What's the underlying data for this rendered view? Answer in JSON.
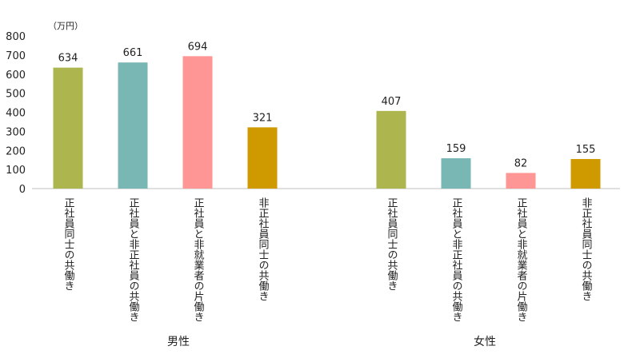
{
  "chart_data": {
    "type": "bar",
    "unit_label": "（万円）",
    "ylim": [
      0,
      800
    ],
    "yticks": [
      0,
      100,
      200,
      300,
      400,
      500,
      600,
      700,
      800
    ],
    "grid": false,
    "groups": [
      {
        "name": "男性",
        "bars": [
          {
            "category": "正社員同士の共働き",
            "value": 634,
            "color": "#adb54e"
          },
          {
            "category": "正社員と非正社員の共働き",
            "value": 661,
            "color": "#79b7b5"
          },
          {
            "category": "正社員と非就業者の片働き",
            "value": 694,
            "color": "#fe9696"
          },
          {
            "category": "非正社員同士の共働き",
            "value": 321,
            "color": "#cf9a00"
          }
        ]
      },
      {
        "name": "女性",
        "bars": [
          {
            "category": "正社員同士の共働き",
            "value": 407,
            "color": "#adb54e"
          },
          {
            "category": "正社員と非正社員の共働き",
            "value": 159,
            "color": "#79b7b5"
          },
          {
            "category": "正社員と非就業者の片働き",
            "value": 82,
            "color": "#fe9696"
          },
          {
            "category": "非正社員同士の共働き",
            "value": 155,
            "color": "#cf9a00"
          }
        ]
      }
    ]
  }
}
